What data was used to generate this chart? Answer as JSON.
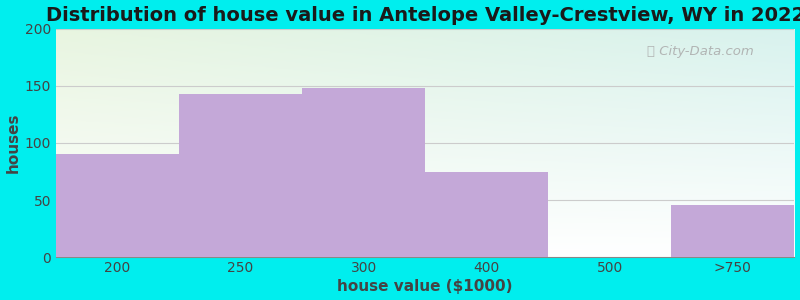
{
  "title": "Distribution of house value in Antelope Valley-Crestview, WY in 2022",
  "xlabel": "house value ($1000)",
  "ylabel": "houses",
  "categories": [
    "200",
    "250",
    "300",
    "400",
    "500",
    ">750"
  ],
  "values": [
    90,
    143,
    148,
    75,
    0,
    46
  ],
  "bar_color": "#C4A8D8",
  "ylim": [
    0,
    200
  ],
  "yticks": [
    0,
    50,
    100,
    150,
    200
  ],
  "background_outer": "#00EEEE",
  "bg_color_topleft": "#e8f5e0",
  "bg_color_topright": "#d8f0ee",
  "bg_color_bottom": "#ffffff",
  "title_fontsize": 14,
  "axis_label_fontsize": 11,
  "tick_fontsize": 10,
  "watermark_text": "City-Data.com",
  "watermark_color": "#aaaaaa",
  "grid_color": "#cccccc"
}
